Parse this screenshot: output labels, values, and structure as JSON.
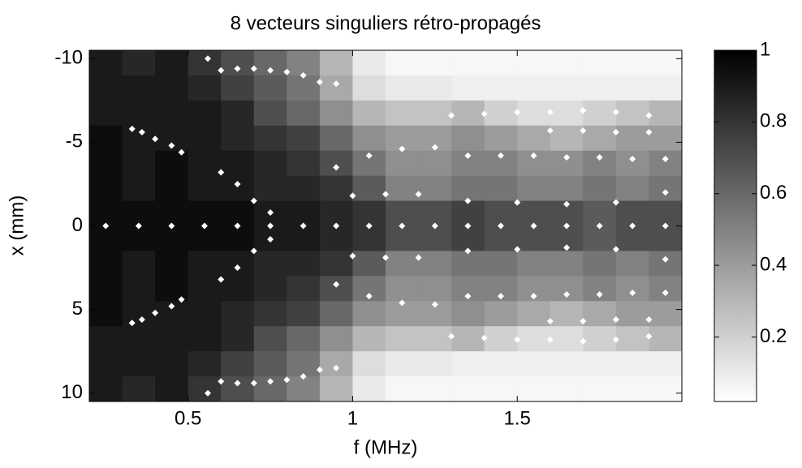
{
  "chart_data": {
    "type": "heatmap",
    "title": "8 vecteurs singuliers rétro-propagés",
    "xlabel": "f (MHz)",
    "ylabel": "x (mm)",
    "xlim": [
      0.2,
      2.0
    ],
    "ylim": [
      -10.5,
      10.5
    ],
    "yreverse": true,
    "xticks": [
      0.5,
      1,
      1.5
    ],
    "yticks": [
      -10,
      -5,
      0,
      5,
      10
    ],
    "clim": [
      0.02,
      1
    ],
    "cticks": [
      0.2,
      0.4,
      0.6,
      0.8,
      1
    ],
    "colormap": [
      "#ffffff",
      "#000000"
    ],
    "xbins": [
      0.2,
      0.3,
      0.4,
      0.5,
      0.6,
      0.7,
      0.8,
      0.9,
      1.0,
      1.1,
      1.2,
      1.3,
      1.4,
      1.5,
      1.6,
      1.7,
      1.8,
      1.9,
      2.0
    ],
    "ybins": [
      -10.5,
      -9,
      -7.5,
      -6,
      -4.5,
      -3,
      -1.5,
      0,
      1.5,
      3,
      4.5,
      6,
      7.5,
      9,
      10.5
    ],
    "z": [
      [
        0.9,
        0.85,
        0.9,
        0.8,
        0.7,
        0.6,
        0.5,
        0.3,
        0.1,
        0.05,
        0.05,
        0.05,
        0.05,
        0.05,
        0.05,
        0.05,
        0.05,
        0.05
      ],
      [
        0.9,
        0.9,
        0.9,
        0.85,
        0.75,
        0.65,
        0.55,
        0.35,
        0.15,
        0.1,
        0.1,
        0.08,
        0.08,
        0.08,
        0.08,
        0.08,
        0.08,
        0.08
      ],
      [
        0.9,
        0.9,
        0.9,
        0.9,
        0.85,
        0.7,
        0.6,
        0.45,
        0.3,
        0.25,
        0.25,
        0.3,
        0.2,
        0.15,
        0.15,
        0.2,
        0.25,
        0.3
      ],
      [
        0.95,
        0.9,
        0.9,
        0.9,
        0.85,
        0.8,
        0.75,
        0.6,
        0.45,
        0.4,
        0.4,
        0.45,
        0.4,
        0.35,
        0.3,
        0.35,
        0.4,
        0.4
      ],
      [
        0.95,
        0.9,
        0.95,
        0.9,
        0.9,
        0.85,
        0.8,
        0.7,
        0.55,
        0.45,
        0.45,
        0.5,
        0.5,
        0.45,
        0.45,
        0.5,
        0.45,
        0.5
      ],
      [
        0.95,
        0.9,
        0.95,
        0.9,
        0.9,
        0.85,
        0.85,
        0.8,
        0.65,
        0.5,
        0.5,
        0.55,
        0.55,
        0.5,
        0.5,
        0.55,
        0.5,
        0.55
      ],
      [
        0.95,
        0.95,
        0.95,
        0.95,
        0.95,
        0.9,
        0.9,
        0.85,
        0.8,
        0.7,
        0.7,
        0.75,
        0.7,
        0.7,
        0.7,
        0.65,
        0.7,
        0.7
      ],
      [
        0.95,
        0.95,
        0.95,
        0.95,
        0.95,
        0.9,
        0.9,
        0.85,
        0.8,
        0.7,
        0.7,
        0.75,
        0.7,
        0.7,
        0.7,
        0.65,
        0.7,
        0.7
      ],
      [
        0.95,
        0.9,
        0.95,
        0.9,
        0.9,
        0.85,
        0.85,
        0.8,
        0.65,
        0.5,
        0.5,
        0.55,
        0.55,
        0.5,
        0.5,
        0.55,
        0.5,
        0.55
      ],
      [
        0.95,
        0.9,
        0.95,
        0.9,
        0.9,
        0.85,
        0.8,
        0.7,
        0.55,
        0.45,
        0.45,
        0.5,
        0.5,
        0.45,
        0.45,
        0.5,
        0.45,
        0.5
      ],
      [
        0.95,
        0.9,
        0.9,
        0.9,
        0.85,
        0.8,
        0.75,
        0.6,
        0.45,
        0.4,
        0.4,
        0.45,
        0.4,
        0.35,
        0.3,
        0.35,
        0.4,
        0.4
      ],
      [
        0.9,
        0.9,
        0.9,
        0.9,
        0.85,
        0.7,
        0.6,
        0.45,
        0.3,
        0.25,
        0.25,
        0.3,
        0.2,
        0.15,
        0.15,
        0.2,
        0.25,
        0.3
      ],
      [
        0.9,
        0.9,
        0.9,
        0.85,
        0.75,
        0.65,
        0.55,
        0.35,
        0.15,
        0.1,
        0.1,
        0.08,
        0.08,
        0.08,
        0.08,
        0.08,
        0.08,
        0.08
      ],
      [
        0.9,
        0.85,
        0.9,
        0.8,
        0.7,
        0.6,
        0.5,
        0.3,
        0.1,
        0.05,
        0.05,
        0.05,
        0.05,
        0.05,
        0.05,
        0.05,
        0.05,
        0.05
      ]
    ],
    "points": {
      "color": "#ffffff",
      "f": [
        0.56,
        0.6,
        0.65,
        0.7,
        0.75,
        0.8,
        0.85,
        0.9,
        0.95,
        0.56,
        0.6,
        0.65,
        0.7,
        0.75,
        0.8,
        0.85,
        0.9,
        0.95,
        0.33,
        0.36,
        0.4,
        0.45,
        0.48,
        0.33,
        0.36,
        0.4,
        0.45,
        0.48,
        0.25,
        0.35,
        0.45,
        0.55,
        0.65,
        0.75,
        0.85,
        0.95,
        1.05,
        1.15,
        1.25,
        1.35,
        1.45,
        1.55,
        1.65,
        1.75,
        1.85,
        1.95,
        0.95,
        1.05,
        1.15,
        1.25,
        1.35,
        1.45,
        1.55,
        1.65,
        1.75,
        1.85,
        1.95,
        0.95,
        1.05,
        1.15,
        1.25,
        1.35,
        1.45,
        1.55,
        1.65,
        1.75,
        1.85,
        1.95,
        1.3,
        1.4,
        1.5,
        1.6,
        1.7,
        1.8,
        1.9,
        1.3,
        1.4,
        1.5,
        1.6,
        1.7,
        1.8,
        1.9,
        1.0,
        1.1,
        1.2,
        1.35,
        1.5,
        1.65,
        1.8,
        1.95,
        1.0,
        1.1,
        1.2,
        1.35,
        1.5,
        1.65,
        1.8,
        1.95,
        1.6,
        1.7,
        1.8,
        1.9,
        1.6,
        1.7,
        1.8,
        1.9,
        0.6,
        0.65,
        0.7,
        0.75,
        0.6,
        0.65,
        0.7,
        0.75
      ],
      "x": [
        -10,
        -9.3,
        -9.4,
        -9.4,
        -9.3,
        -9.2,
        -9.0,
        -8.6,
        -8.5,
        10,
        9.3,
        9.4,
        9.4,
        9.3,
        9.2,
        9.0,
        8.6,
        8.5,
        -5.8,
        -5.6,
        -5.2,
        -4.8,
        -4.4,
        5.8,
        5.6,
        5.2,
        4.8,
        4.4,
        0,
        0,
        0,
        0,
        0,
        0,
        0,
        0,
        0,
        0,
        0,
        0,
        0,
        0,
        0,
        0,
        0,
        0,
        -3.5,
        -4.2,
        -4.6,
        -4.7,
        -4.2,
        -4.2,
        -4.2,
        -4.1,
        -4.1,
        -4.0,
        -4.0,
        3.5,
        4.2,
        4.6,
        4.7,
        4.2,
        4.2,
        4.2,
        4.1,
        4.1,
        4.0,
        4.0,
        -6.6,
        -6.7,
        -6.8,
        -6.8,
        -6.9,
        -6.8,
        -6.6,
        6.6,
        6.7,
        6.8,
        6.8,
        6.9,
        6.8,
        6.6,
        -1.8,
        -1.9,
        -1.9,
        -1.5,
        -1.4,
        -1.3,
        -1.4,
        -2.0,
        1.8,
        1.9,
        1.9,
        1.5,
        1.4,
        1.3,
        1.4,
        2.0,
        -5.7,
        -5.7,
        -5.6,
        -5.6,
        5.7,
        5.7,
        5.6,
        5.6,
        -3.2,
        -2.5,
        -1.5,
        -0.8,
        3.2,
        2.5,
        1.5,
        0.8
      ]
    }
  }
}
